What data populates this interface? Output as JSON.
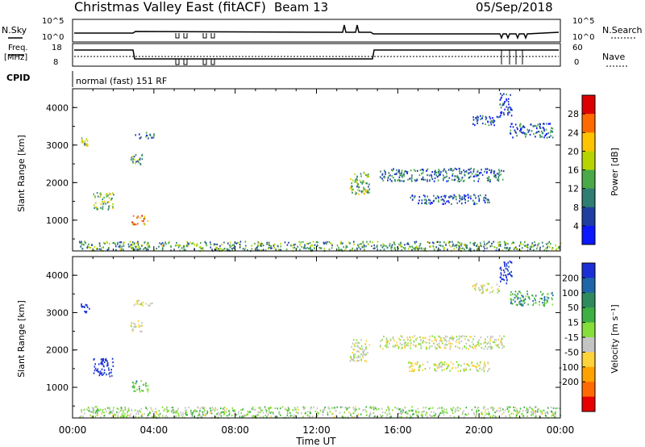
{
  "header": {
    "title": "Christmas Valley East (fitACF)",
    "beam": "Beam 13",
    "date": "05/Sep/2018"
  },
  "nsky_panel": {
    "left_label": "N.Sky",
    "right_label": "N.Search",
    "left_ticks": [
      "10^5",
      "10^0"
    ],
    "right_ticks": [
      "10^5",
      "10^0"
    ]
  },
  "freq_panel": {
    "left_label_1": "Freq.",
    "left_label_2": "[MHz]",
    "right_label": "Nave",
    "left_ticks": [
      "18",
      "8"
    ],
    "right_ticks": [
      "60",
      "0"
    ]
  },
  "cpid": {
    "label": "CPID",
    "text": "normal (fast) 151 RF"
  },
  "power_colorbar": {
    "label": "Power [dB]",
    "ticks": [
      "28",
      "24",
      "20",
      "16",
      "12",
      "8",
      "4"
    ],
    "colors": [
      "#dd0000",
      "#ff6a00",
      "#ffc300",
      "#b7d400",
      "#4aaa48",
      "#2f7d73",
      "#1e3fa0",
      "#0a17ff"
    ]
  },
  "velocity_colorbar": {
    "label": "Velocity [m s⁻¹]",
    "ticks": [
      "200",
      "100",
      "50",
      "15",
      "-15",
      "-50",
      "-100",
      "-200"
    ],
    "colors": [
      "#1a2fd6",
      "#1e66a8",
      "#2f8a5e",
      "#3cb043",
      "#86de3a",
      "#c4c4c4",
      "#ffd33a",
      "#ffa200",
      "#ff6a00",
      "#e60000"
    ]
  },
  "x_axis": {
    "label": "Time UT",
    "ticks": [
      "00:00",
      "04:00",
      "08:00",
      "12:00",
      "16:00",
      "20:00",
      "00:00"
    ]
  },
  "chart_data": [
    {
      "type": "heatmap",
      "title": "Power",
      "ylabel": "Slant Range [km]",
      "xlabel": "",
      "xlim_hours": [
        0,
        24
      ],
      "ylim_km": [
        180,
        4500
      ],
      "yticks": [
        "1000",
        "2000",
        "3000",
        "4000"
      ],
      "colorbar_label": "Power [dB]",
      "colorbar_range": [
        0,
        30
      ],
      "echo_regions": [
        {
          "t0": 0.3,
          "t1": 24.0,
          "r0": 200,
          "r1": 450,
          "value": 12
        },
        {
          "t0": 0.4,
          "t1": 0.8,
          "r0": 3000,
          "r1": 3200,
          "value": 16
        },
        {
          "t0": 1.0,
          "t1": 2.0,
          "r0": 1300,
          "r1": 1750,
          "value": 14
        },
        {
          "t0": 2.9,
          "t1": 3.7,
          "r0": 900,
          "r1": 1150,
          "value": 22
        },
        {
          "t0": 2.8,
          "t1": 3.4,
          "r0": 2500,
          "r1": 2800,
          "value": 10
        },
        {
          "t0": 3.0,
          "t1": 4.0,
          "r0": 3200,
          "r1": 3350,
          "value": 6
        },
        {
          "t0": 13.6,
          "t1": 14.6,
          "r0": 1700,
          "r1": 2300,
          "value": 14
        },
        {
          "t0": 15.1,
          "t1": 21.2,
          "r0": 2050,
          "r1": 2400,
          "value": 8
        },
        {
          "t0": 16.5,
          "t1": 20.5,
          "r0": 1450,
          "r1": 1700,
          "value": 6
        },
        {
          "t0": 19.6,
          "t1": 21.0,
          "r0": 3550,
          "r1": 3800,
          "value": 6
        },
        {
          "t0": 21.5,
          "t1": 23.6,
          "r0": 3200,
          "r1": 3600,
          "value": 6
        },
        {
          "t0": 21.0,
          "t1": 21.6,
          "r0": 3800,
          "r1": 4400,
          "value": 6
        }
      ]
    },
    {
      "type": "heatmap",
      "title": "Velocity",
      "ylabel": "Slant Range [km]",
      "xlabel": "Time UT",
      "xlim_hours": [
        0,
        24
      ],
      "ylim_km": [
        180,
        4500
      ],
      "yticks": [
        "1000",
        "2000",
        "3000",
        "4000"
      ],
      "colorbar_label": "Velocity [m s⁻¹]",
      "colorbar_range": [
        -250,
        250
      ],
      "echo_regions": [
        {
          "t0": 0.3,
          "t1": 24.0,
          "r0": 200,
          "r1": 500,
          "value": 20
        },
        {
          "t0": 0.4,
          "t1": 0.8,
          "r0": 3000,
          "r1": 3250,
          "value": 220
        },
        {
          "t0": 1.0,
          "t1": 2.0,
          "r0": 1300,
          "r1": 1800,
          "value": 180
        },
        {
          "t0": 2.9,
          "t1": 3.7,
          "r0": 900,
          "r1": 1200,
          "value": 45
        },
        {
          "t0": 2.8,
          "t1": 3.4,
          "r0": 2500,
          "r1": 2800,
          "value": 0
        },
        {
          "t0": 3.0,
          "t1": 4.0,
          "r0": 3200,
          "r1": 3350,
          "value": 0
        },
        {
          "t0": 13.6,
          "t1": 14.6,
          "r0": 1700,
          "r1": 2300,
          "value": 0
        },
        {
          "t0": 15.1,
          "t1": 21.2,
          "r0": 2050,
          "r1": 2400,
          "value": 0
        },
        {
          "t0": 16.5,
          "t1": 20.5,
          "r0": 1450,
          "r1": 1700,
          "value": 0
        },
        {
          "t0": 19.6,
          "t1": 21.0,
          "r0": 3550,
          "r1": 3800,
          "value": 0
        },
        {
          "t0": 21.5,
          "t1": 23.6,
          "r0": 3200,
          "r1": 3600,
          "value": 60
        },
        {
          "t0": 21.0,
          "t1": 21.6,
          "r0": 3800,
          "r1": 4400,
          "value": 180
        }
      ]
    }
  ]
}
